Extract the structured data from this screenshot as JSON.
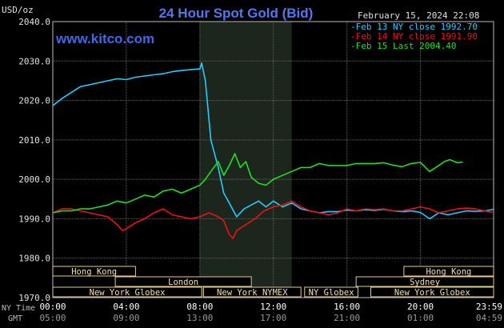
{
  "chart_data": {
    "type": "line",
    "title": "24 Hour Spot Gold (Bid)",
    "watermark": "www.kitco.com",
    "date_stamp": "February 15, 2024 22:08",
    "ylabel": "USD/oz",
    "ylim": [
      1970,
      2040
    ],
    "y_ticks": [
      "2040.0",
      "2030.0",
      "2020.0",
      "2010.0",
      "2000.0",
      "1990.0",
      "1980.0",
      "1970.0"
    ],
    "x_axis_ny_label": "NY Time",
    "x_axis_gmt_label": "GMT",
    "x_ticks_ny": [
      "00:00",
      "04:00",
      "08:00",
      "12:00",
      "16:00",
      "20:00",
      "23:59"
    ],
    "x_ticks_gmt": [
      "05:00",
      "09:00",
      "13:00",
      "17:00",
      "21:00",
      "01:00",
      "04:59"
    ],
    "grid": true,
    "legend_position": "top-right",
    "shaded_range_hours": [
      8,
      13
    ],
    "series": [
      {
        "name": "Feb 13 NY close 1992.70",
        "color": "#22ccff",
        "x": [
          0,
          0.5,
          1,
          1.5,
          2,
          2.5,
          3,
          3.5,
          4,
          4.5,
          5,
          5.5,
          6,
          6.5,
          7,
          7.5,
          8,
          8.1,
          8.3,
          8.6,
          9,
          9.3,
          9.6,
          10,
          10.4,
          10.8,
          11.2,
          11.6,
          12,
          12.5,
          13,
          13.5,
          14,
          14.5,
          15,
          15.5,
          16,
          16.5,
          17,
          17.5,
          18,
          18.5,
          19,
          19.5,
          20,
          20.5,
          21,
          21.5,
          22,
          22.5,
          23,
          23.5,
          23.98
        ],
        "y": [
          2018.7,
          2020.5,
          2022.0,
          2023.5,
          2024.0,
          2024.5,
          2025.0,
          2025.5,
          2025.3,
          2025.9,
          2026.2,
          2026.5,
          2026.8,
          2027.3,
          2027.6,
          2027.8,
          2028.0,
          2029.5,
          2025.0,
          2010.0,
          2003.0,
          1996.5,
          1994.0,
          1990.5,
          1992.5,
          1993.5,
          1994.5,
          1993.0,
          1994.5,
          1993.0,
          1994.0,
          1992.5,
          1992.0,
          1991.5,
          1991.8,
          1991.8,
          1992.2,
          1992.0,
          1992.3,
          1992.1,
          1992.4,
          1992.0,
          1991.8,
          1992.0,
          1991.6,
          1990.0,
          1991.5,
          1991.0,
          1991.5,
          1992.0,
          1991.9,
          1992.0,
          1992.4
        ]
      },
      {
        "name": "Feb 14 NY close 1991.90",
        "color": "#ee1111",
        "x": [
          0,
          0.5,
          1,
          1.5,
          2,
          2.5,
          3,
          3.5,
          3.8,
          4,
          4.5,
          5,
          5.5,
          6,
          6.5,
          7,
          7.5,
          8,
          8.5,
          9,
          9.3,
          9.6,
          9.8,
          10,
          10.5,
          11,
          11.5,
          12,
          12.5,
          13,
          13.5,
          14,
          14.5,
          15,
          15.5,
          16,
          16.5,
          17,
          17.5,
          18,
          18.5,
          19,
          19.5,
          20,
          20.5,
          21,
          21.5,
          22,
          22.5,
          23,
          23.5,
          23.98
        ],
        "y": [
          1991.5,
          1992.5,
          1992.5,
          1992.0,
          1991.5,
          1991.0,
          1990.5,
          1988.5,
          1987.0,
          1987.5,
          1989.0,
          1990.0,
          1991.5,
          1992.5,
          1991.0,
          1990.5,
          1990.0,
          1990.5,
          1991.5,
          1990.5,
          1989.5,
          1986.0,
          1985.0,
          1987.0,
          1988.5,
          1990.0,
          1992.0,
          1993.0,
          1993.5,
          1994.5,
          1993.0,
          1992.0,
          1991.5,
          1991.0,
          1991.5,
          1992.5,
          1992.0,
          1992.5,
          1992.3,
          1992.5,
          1992.0,
          1992.0,
          1992.5,
          1993.0,
          1992.5,
          1991.5,
          1992.0,
          1992.5,
          1992.7,
          1992.5,
          1992.0,
          1991.6
        ]
      },
      {
        "name": "Feb 15 Last 2004.40",
        "color": "#22dd22",
        "x": [
          0,
          0.5,
          1,
          1.5,
          2,
          2.5,
          3,
          3.5,
          4,
          4.5,
          5,
          5.5,
          6,
          6.5,
          7,
          7.5,
          8,
          8.3,
          8.6,
          9,
          9.3,
          9.6,
          9.9,
          10.2,
          10.5,
          10.8,
          11.2,
          11.6,
          12,
          12.5,
          13,
          13.5,
          14,
          14.5,
          15,
          15.5,
          16,
          16.5,
          17,
          17.5,
          18,
          18.5,
          19,
          19.5,
          20,
          20.5,
          21,
          21.3,
          21.6,
          22,
          22.3
        ],
        "y": [
          1991.5,
          1992.0,
          1992.0,
          1992.5,
          1992.5,
          1993.0,
          1993.5,
          1994.5,
          1994.0,
          1995.0,
          1996.0,
          1995.5,
          1997.0,
          1997.5,
          1996.5,
          1997.5,
          1998.5,
          2000.0,
          2002.0,
          2004.5,
          2001.0,
          2003.5,
          2006.5,
          2003.0,
          2004.5,
          2000.5,
          1999.0,
          1998.5,
          2000.0,
          2001.0,
          2002.0,
          2003.0,
          2003.0,
          2004.0,
          2003.5,
          2003.5,
          2003.5,
          2004.0,
          2004.0,
          2004.0,
          2004.2,
          2003.6,
          2003.2,
          2004.0,
          2004.3,
          2002.0,
          2003.5,
          2004.5,
          2005.0,
          2004.2,
          2004.4
        ]
      }
    ],
    "sessions": [
      {
        "label": "Hong Kong",
        "start": 0,
        "end": 4.5,
        "row": 0
      },
      {
        "label": "London",
        "start": 3.4,
        "end": 10.8,
        "row": 1
      },
      {
        "label": "New York Globex",
        "start": 0,
        "end": 8.1,
        "row": 2
      },
      {
        "label": "New York NYMEX",
        "start": 8.2,
        "end": 13.5,
        "row": 2
      },
      {
        "label": "NY Globex",
        "start": 13.7,
        "end": 16.6,
        "row": 2
      },
      {
        "label": "Hong Kong",
        "start": 19.1,
        "end": 23.98,
        "row": 0
      },
      {
        "label": "Sydney",
        "start": 16.5,
        "end": 23.98,
        "row": 1
      },
      {
        "label": "New York Globex",
        "start": 17.3,
        "end": 23.98,
        "row": 2
      }
    ]
  }
}
